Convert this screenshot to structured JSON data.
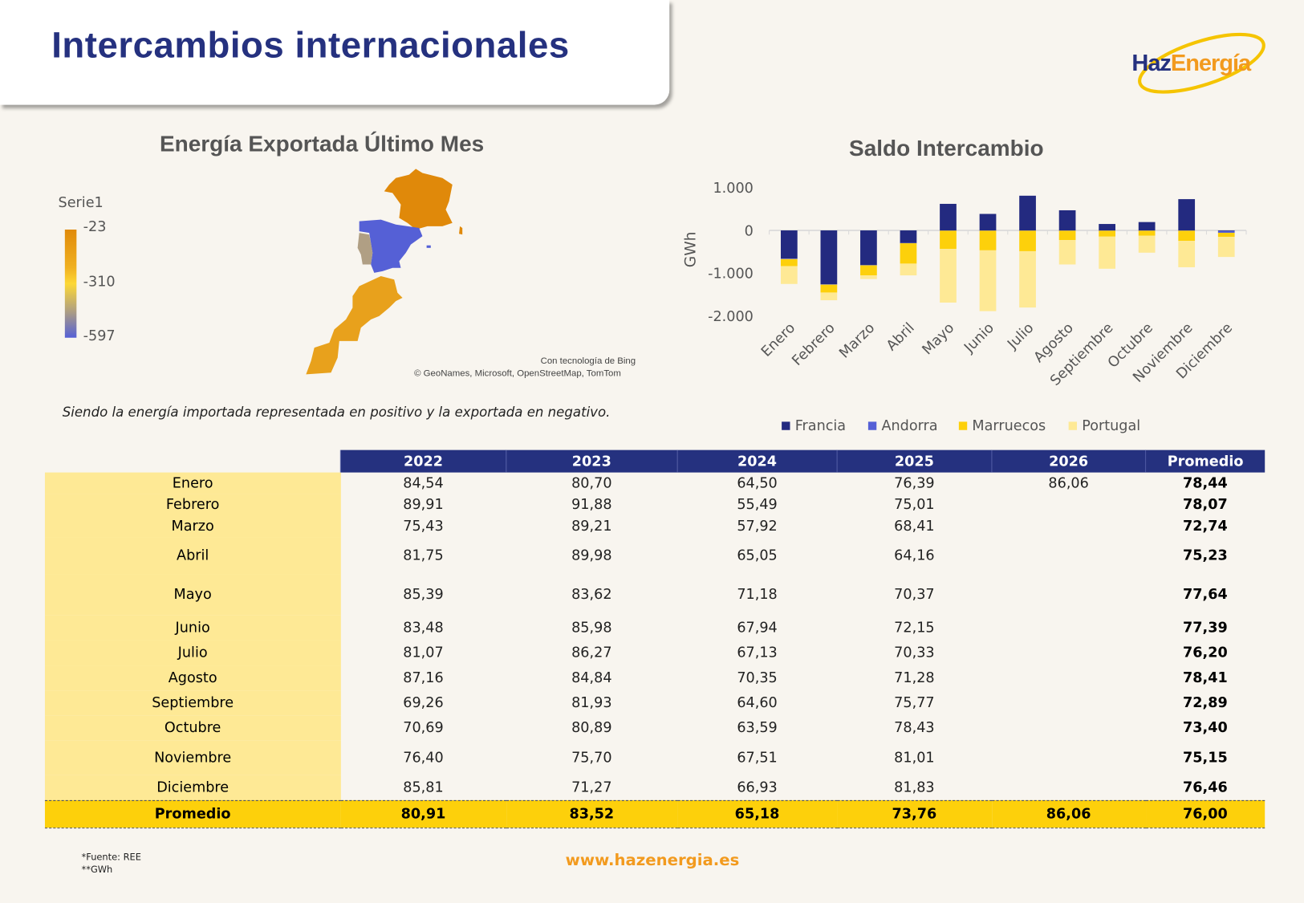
{
  "header": {
    "title": "Intercambios internacionales",
    "logo_text_a": "Haz",
    "logo_text_b": "Energía"
  },
  "map": {
    "title": "Energía Exportada Último Mes",
    "legend_title": "Serie1",
    "legend_ticks": [
      "-23",
      "-310",
      "-597"
    ],
    "colors": {
      "high": "#e08a0a",
      "mid": "#fdd835",
      "low": "#5560d6"
    },
    "regions": [
      {
        "name": "Francia",
        "color": "#e0890a"
      },
      {
        "name": "España",
        "color": "#5560d6"
      },
      {
        "name": "Portugal",
        "color": "#b09f84"
      },
      {
        "name": "Marruecos",
        "color": "#e8a11c"
      }
    ],
    "credit_1": "Con tecnología de Bing",
    "credit_2": "© GeoNames, Microsoft, OpenStreetMap, TomTom"
  },
  "note": "Siendo la energía importada representada en positivo y la exportada en negativo.",
  "chart_data": {
    "type": "bar",
    "stacked": true,
    "title": "Saldo Intercambio",
    "ylabel": "GWh",
    "ylim": [
      -2000,
      1000
    ],
    "yticks": [
      "1.000",
      "0",
      "-1.000",
      "-2.000"
    ],
    "ytick_values": [
      1000,
      0,
      -1000,
      -2000
    ],
    "grid": false,
    "legend": "bottom",
    "categories": [
      "Enero",
      "Febrero",
      "Marzo",
      "Abril",
      "Mayo",
      "Junio",
      "Julio",
      "Agosto",
      "Septiembre",
      "Octubre",
      "Noviembre",
      "Diciembre"
    ],
    "series": [
      {
        "name": "Francia",
        "color": "#232a80",
        "values": [
          -660,
          -1255,
          -810,
          -295,
          620,
          385,
          810,
          470,
          150,
          195,
          730,
          -15
        ]
      },
      {
        "name": "Andorra",
        "color": "#5560d6",
        "values": [
          -10,
          -10,
          -5,
          -5,
          -5,
          -5,
          -5,
          -5,
          -5,
          -5,
          -5,
          -40
        ]
      },
      {
        "name": "Marruecos",
        "color": "#fdd00b",
        "values": [
          -165,
          -185,
          -235,
          -475,
          -425,
          -460,
          -480,
          -220,
          -140,
          -120,
          -240,
          -95
        ]
      },
      {
        "name": "Portugal",
        "color": "#fee995",
        "values": [
          -415,
          -180,
          -85,
          -275,
          -1255,
          -1420,
          -1315,
          -570,
          -750,
          -395,
          -615,
          -470
        ]
      }
    ]
  },
  "table": {
    "columns": [
      "",
      "2022",
      "2023",
      "2024",
      "2025",
      "2026",
      "Promedio"
    ],
    "rows": [
      [
        "Enero",
        "84,54",
        "80,70",
        "64,50",
        "76,39",
        "86,06",
        "78,44"
      ],
      [
        "Febrero",
        "89,91",
        "91,88",
        "55,49",
        "75,01",
        "",
        "78,07"
      ],
      [
        "Marzo",
        "75,43",
        "89,21",
        "57,92",
        "68,41",
        "",
        "72,74"
      ],
      [
        "Abril",
        "81,75",
        "89,98",
        "65,05",
        "64,16",
        "",
        "75,23"
      ],
      [
        "Mayo",
        "85,39",
        "83,62",
        "71,18",
        "70,37",
        "",
        "77,64"
      ],
      [
        "Junio",
        "83,48",
        "85,98",
        "67,94",
        "72,15",
        "",
        "77,39"
      ],
      [
        "Julio",
        "81,07",
        "86,27",
        "67,13",
        "70,33",
        "",
        "76,20"
      ],
      [
        "Agosto",
        "87,16",
        "84,84",
        "70,35",
        "71,28",
        "",
        "78,41"
      ],
      [
        "Septiembre",
        "69,26",
        "81,93",
        "64,60",
        "75,77",
        "",
        "72,89"
      ],
      [
        "Octubre",
        "70,69",
        "80,89",
        "63,59",
        "78,43",
        "",
        "73,40"
      ],
      [
        "Noviembre",
        "76,40",
        "75,70",
        "67,51",
        "81,01",
        "",
        "75,15"
      ],
      [
        "Diciembre",
        "85,81",
        "71,27",
        "66,93",
        "81,83",
        "",
        "76,46"
      ]
    ],
    "total": [
      "Promedio",
      "80,91",
      "83,52",
      "65,18",
      "73,76",
      "86,06",
      "76,00"
    ]
  },
  "footer": {
    "source": "*Fuente: REE",
    "unit": "**GWh",
    "url": "www.hazenergia.es"
  }
}
